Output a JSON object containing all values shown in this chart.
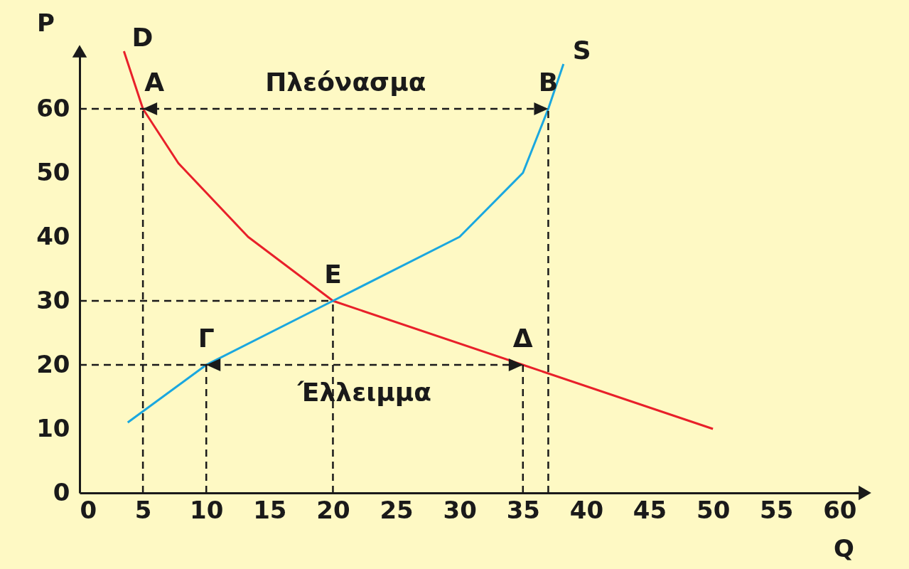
{
  "chart_data": {
    "type": "line",
    "xlabel": "Q",
    "ylabel": "P",
    "xlim": [
      0,
      62
    ],
    "ylim": [
      0,
      69
    ],
    "xticks": [
      0,
      5,
      10,
      15,
      20,
      25,
      30,
      35,
      40,
      45,
      50,
      55,
      60
    ],
    "yticks": [
      0,
      10,
      20,
      30,
      40,
      50,
      60
    ],
    "series": [
      {
        "name": "D",
        "color": "#e8202a",
        "x": [
          3.5,
          5,
          7.8,
          13.3,
          20,
          35,
          50
        ],
        "values": [
          69,
          60,
          51.5,
          40,
          30,
          20,
          10
        ]
      },
      {
        "name": "S",
        "color": "#1aa7df",
        "x": [
          3.8,
          10,
          20,
          30,
          35,
          37,
          38.2
        ],
        "values": [
          11,
          20,
          30,
          40,
          50,
          60,
          67
        ]
      }
    ],
    "ref_lines": [
      {
        "axis": "x",
        "value": 5,
        "color": "#1a1a1a",
        "line_style": "dashed"
      },
      {
        "axis": "x",
        "value": 10,
        "color": "#1a1a1a",
        "line_style": "dashed"
      },
      {
        "axis": "x",
        "value": 20,
        "color": "#1a1a1a",
        "line_style": "dashed"
      },
      {
        "axis": "x",
        "value": 35,
        "color": "#1a1a1a",
        "line_style": "dashed"
      },
      {
        "axis": "x",
        "value": 37,
        "color": "#1a1a1a",
        "line_style": "dashed"
      },
      {
        "axis": "y",
        "value": 20,
        "color": "#1a1a1a",
        "line_style": "dashed"
      },
      {
        "axis": "y",
        "value": 30,
        "color": "#1a1a1a",
        "line_style": "dashed"
      },
      {
        "axis": "y",
        "value": 60,
        "color": "#1a1a1a",
        "line_style": "dashed"
      }
    ],
    "annotations": [
      {
        "text": "A",
        "x": 5,
        "y": 60
      },
      {
        "text": "B",
        "x": 37,
        "y": 60
      },
      {
        "text": "E",
        "x": 20,
        "y": 30
      },
      {
        "text": "Γ",
        "x": 10,
        "y": 20
      },
      {
        "text": "Δ",
        "x": 35,
        "y": 20
      },
      "Πλεόνασμα",
      "Έλλειμμα"
    ]
  }
}
